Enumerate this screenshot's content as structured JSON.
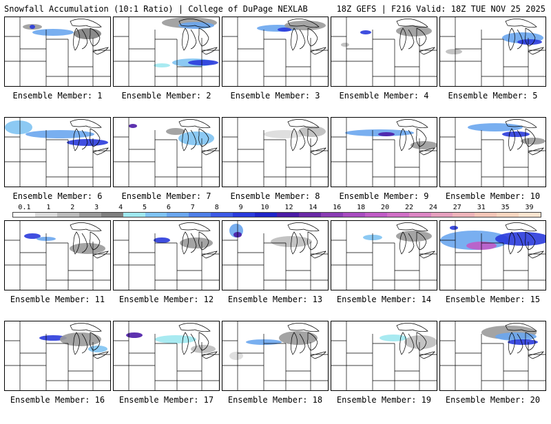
{
  "header": {
    "title_left": "Snowfall Accumulation (10:1 Ratio) | College of DuPage NEXLAB",
    "title_right": "18Z GEFS | F216 Valid: 18Z TUE NOV 25 2025"
  },
  "panels": [
    {
      "label": "Ensemble Member: 1"
    },
    {
      "label": "Ensemble Member: 2"
    },
    {
      "label": "Ensemble Member: 3"
    },
    {
      "label": "Ensemble Member: 4"
    },
    {
      "label": "Ensemble Member: 5"
    },
    {
      "label": "Ensemble Member: 6"
    },
    {
      "label": "Ensemble Member: 7"
    },
    {
      "label": "Ensemble Member: 8"
    },
    {
      "label": "Ensemble Member: 9"
    },
    {
      "label": "Ensemble Member: 10"
    },
    {
      "label": "Ensemble Member: 11"
    },
    {
      "label": "Ensemble Member: 12"
    },
    {
      "label": "Ensemble Member: 13"
    },
    {
      "label": "Ensemble Member: 14"
    },
    {
      "label": "Ensemble Member: 15"
    },
    {
      "label": "Ensemble Member: 16"
    },
    {
      "label": "Ensemble Member: 17"
    },
    {
      "label": "Ensemble Member: 18"
    },
    {
      "label": "Ensemble Member: 19"
    },
    {
      "label": "Ensemble Member: 20"
    }
  ],
  "colorbar": {
    "labels": [
      "0.1",
      "1",
      "2",
      "3",
      "4",
      "5",
      "6",
      "7",
      "8",
      "9",
      "10",
      "12",
      "14",
      "16",
      "18",
      "20",
      "22",
      "24",
      "27",
      "31",
      "35",
      "39"
    ],
    "colors": [
      "#ffffff",
      "#dcdcdc",
      "#bcbcbc",
      "#9a9a9a",
      "#7e7e7e",
      "#9fe8ef",
      "#7fc3f2",
      "#6aa6ee",
      "#4f7fe8",
      "#3d5ae6",
      "#2a3bdc",
      "#1f24c8",
      "#4b1ca6",
      "#6a2aa6",
      "#8a3cb4",
      "#a84cc0",
      "#c05cc6",
      "#d070c6",
      "#dc86c4",
      "#e6a0be",
      "#eeb4ba",
      "#f4c6b8",
      "#f8d6c0",
      "#fbe4cf"
    ]
  }
}
